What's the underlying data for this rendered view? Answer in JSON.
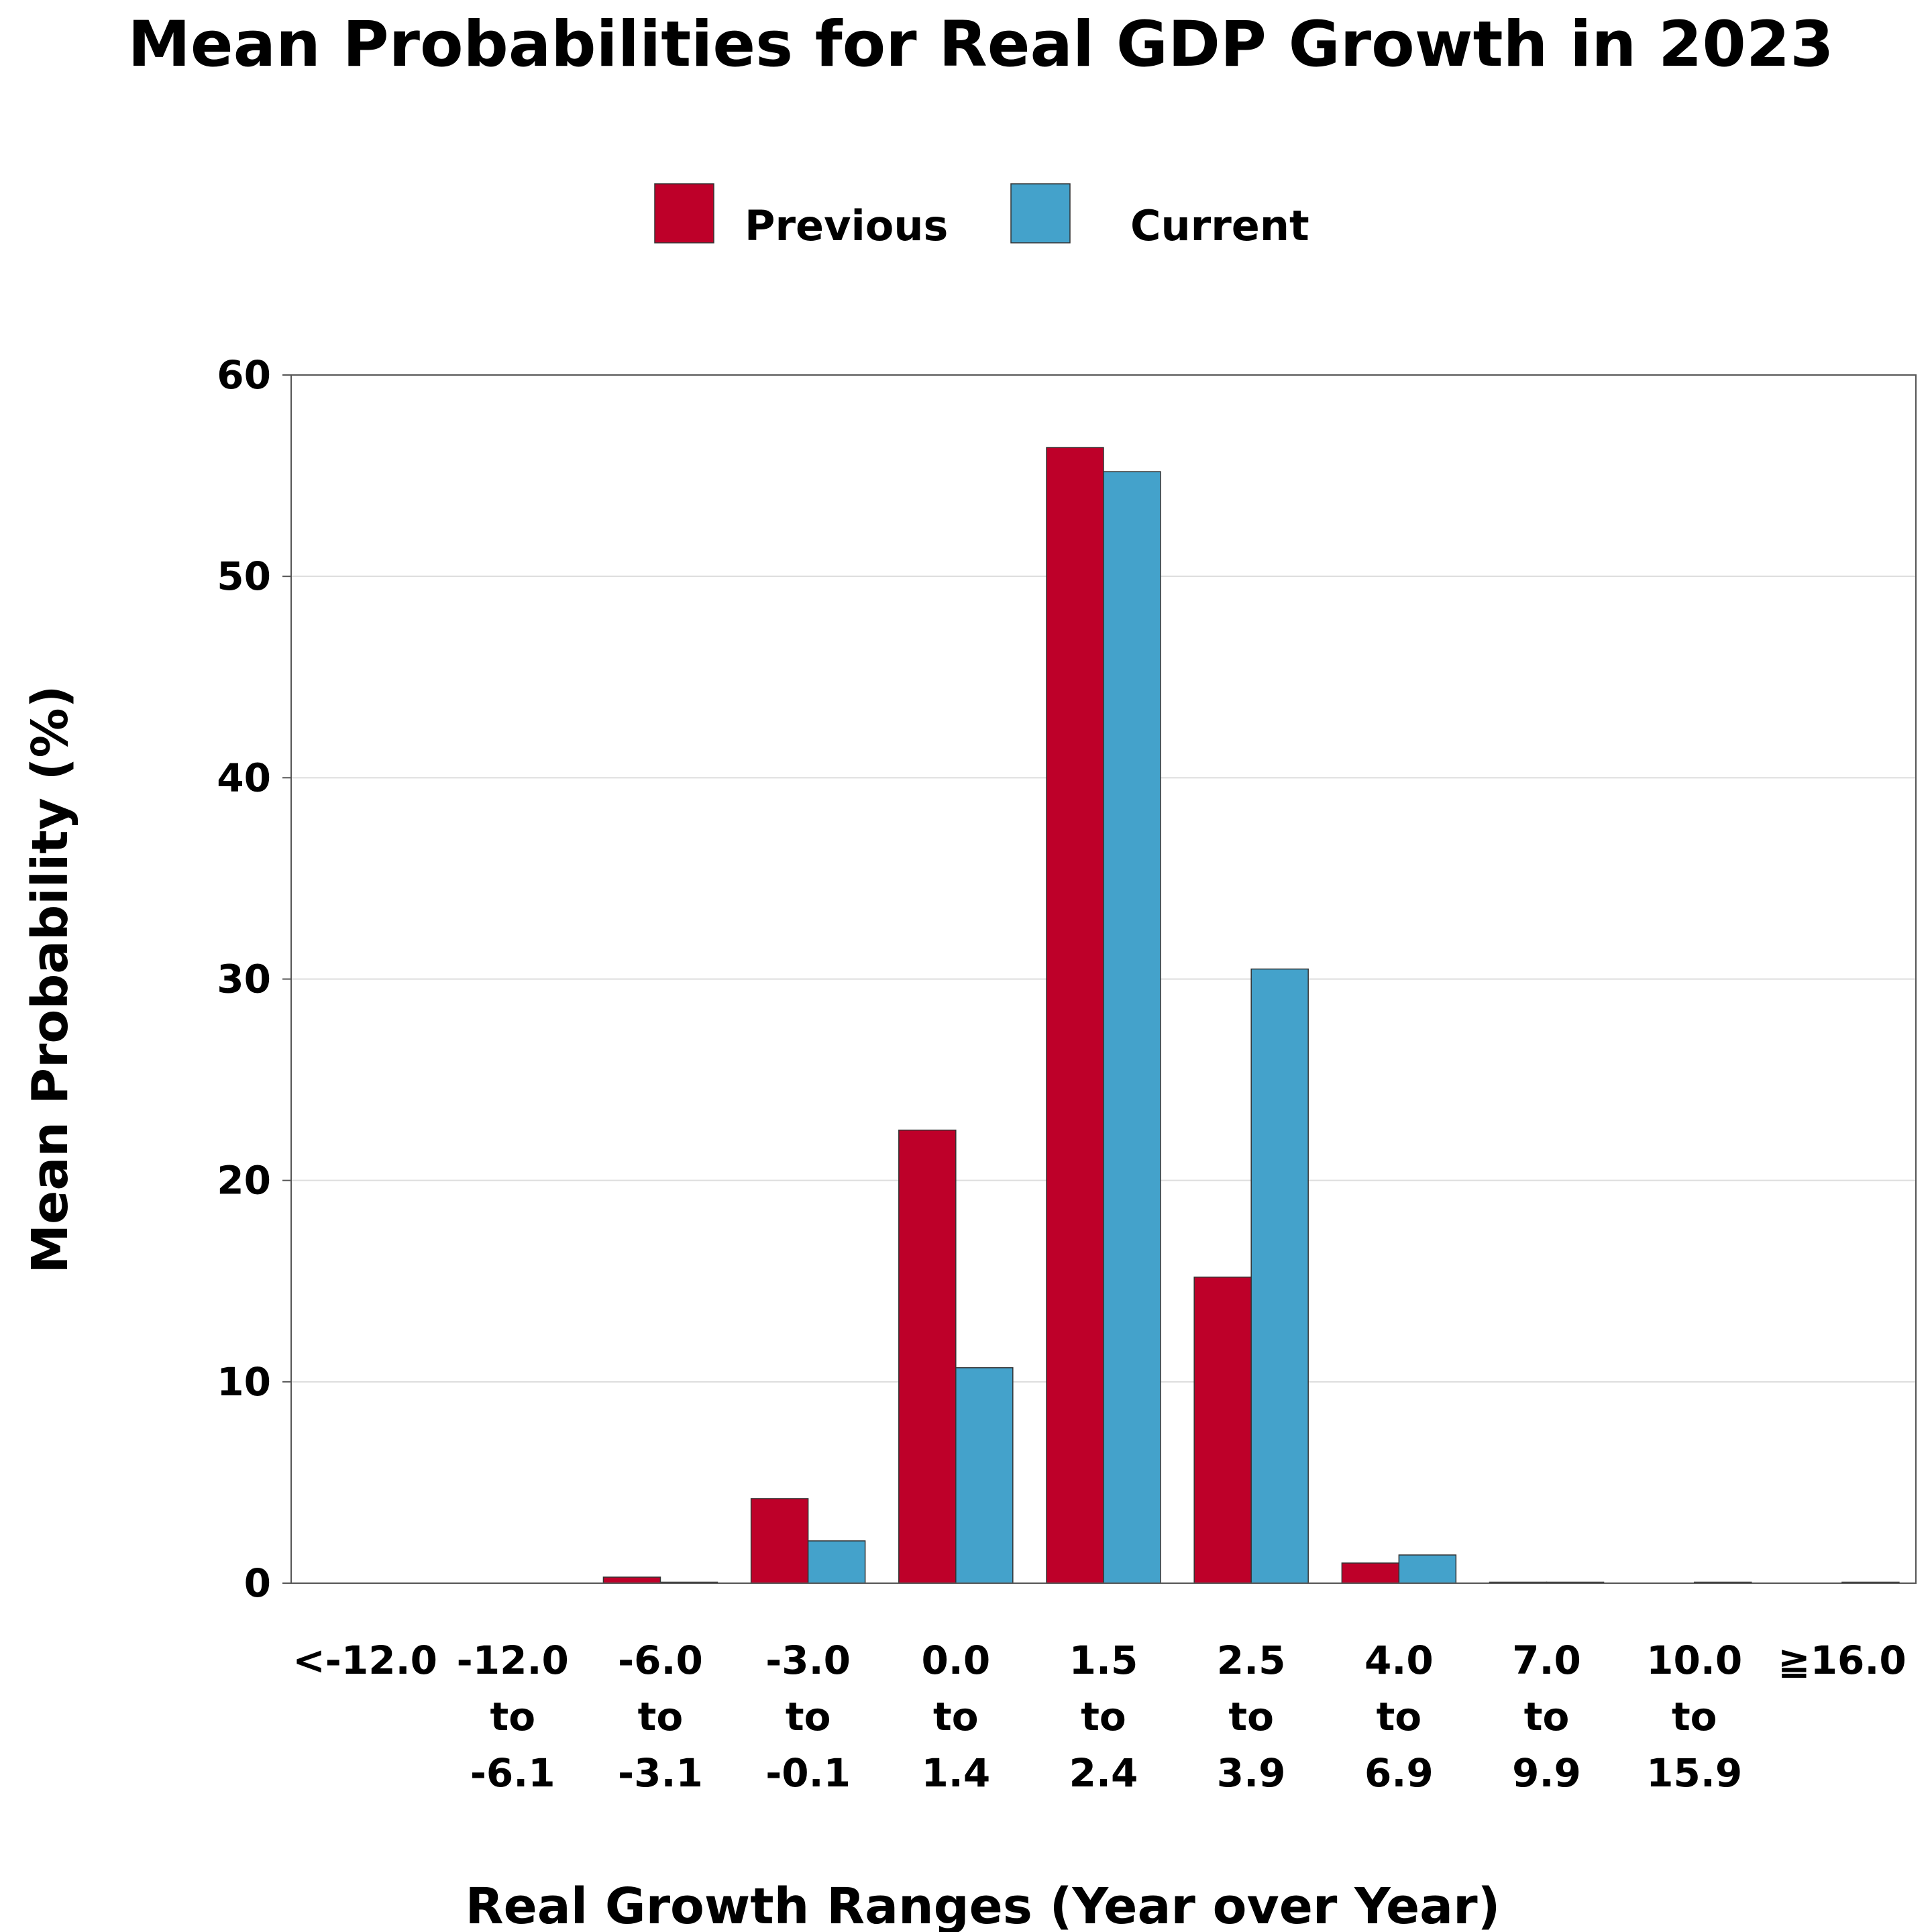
{
  "chart_data": {
    "type": "bar",
    "title": "Mean Probabilities for Real GDP Growth in 2023",
    "xlabel": "Real Growth Ranges (Year over Year)",
    "ylabel": "Mean Probability (%)",
    "ylim": [
      0,
      60
    ],
    "yticks": [
      "0",
      "10",
      "20",
      "30",
      "40",
      "50",
      "60"
    ],
    "grid": true,
    "legend_position": "top-center",
    "categories": [
      [
        "<-12.0"
      ],
      [
        "-12.0",
        "to",
        "-6.1"
      ],
      [
        "-6.0",
        "to",
        "-3.1"
      ],
      [
        "-3.0",
        "to",
        "-0.1"
      ],
      [
        "0.0",
        "to",
        "1.4"
      ],
      [
        "1.5",
        "to",
        "2.4"
      ],
      [
        "2.5",
        "to",
        "3.9"
      ],
      [
        "4.0",
        "to",
        "6.9"
      ],
      [
        "7.0",
        "to",
        "9.9"
      ],
      [
        "10.0",
        "to",
        "15.9"
      ],
      [
        "≧16.0"
      ]
    ],
    "series": [
      {
        "name": "Previous",
        "color": "#be0029",
        "values": [
          0.0,
          0.0,
          0.3,
          4.2,
          22.5,
          56.4,
          15.2,
          1.0,
          0.05,
          0.0,
          0.0
        ]
      },
      {
        "name": "Current",
        "color": "#44a2cb",
        "values": [
          0.0,
          0.0,
          0.05,
          2.1,
          10.7,
          55.2,
          30.5,
          1.4,
          0.05,
          0.05,
          0.05
        ]
      }
    ]
  }
}
